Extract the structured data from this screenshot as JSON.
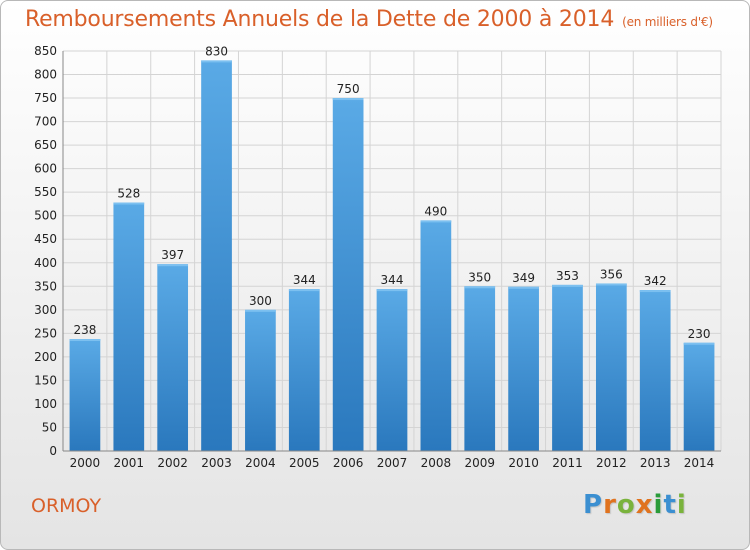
{
  "header": {
    "title": "Remboursements Annuels de la Dette de 2000 à 2014",
    "unit": "(en milliers d'€)"
  },
  "footer": {
    "town": "ORMOY",
    "logo_text": "Proxiti"
  },
  "colors": {
    "title": "#d9602a",
    "bar_light": "#5aaae6",
    "bar_dark": "#2a78bd",
    "grid": "#d4d4d4",
    "axis_text": "#222222",
    "logo_letters": [
      "#3b8fd1",
      "#e0731f",
      "#7ab33c",
      "#e0731f",
      "#2a9c3a",
      "#3b8fd1",
      "#7ab33c"
    ]
  },
  "chart_data": {
    "type": "bar",
    "categories": [
      "2000",
      "2001",
      "2002",
      "2003",
      "2004",
      "2005",
      "2006",
      "2007",
      "2008",
      "2009",
      "2010",
      "2011",
      "2012",
      "2013",
      "2014"
    ],
    "values": [
      238,
      528,
      397,
      830,
      300,
      344,
      750,
      344,
      490,
      350,
      349,
      353,
      356,
      342,
      230
    ],
    "ylim": [
      0,
      850
    ],
    "yticks": [
      0,
      50,
      100,
      150,
      200,
      250,
      300,
      350,
      400,
      450,
      500,
      550,
      600,
      650,
      700,
      750,
      800,
      850
    ],
    "grid": true,
    "data_labels": true
  }
}
